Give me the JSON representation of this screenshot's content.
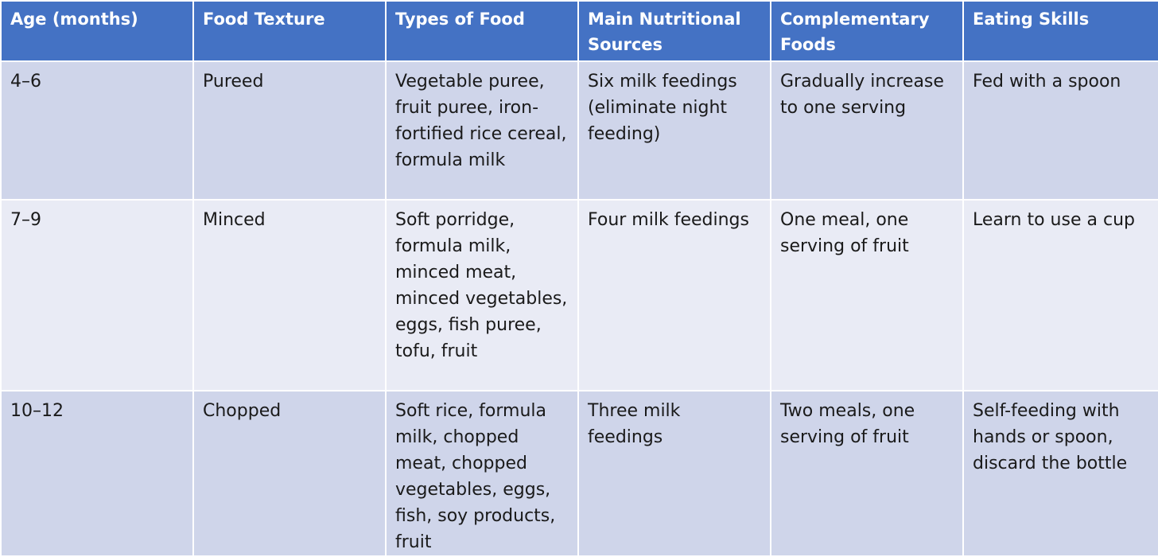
{
  "table": {
    "headers": [
      "Age (months)",
      "Food Texture",
      "Types of Food",
      "Main Nutritional Sources",
      "Complementary Foods",
      "Eating Skills"
    ],
    "rows": [
      [
        "4–6",
        "Pureed",
        "Vegetable puree, fruit puree, iron-fortified rice cereal, formula milk",
        "Six milk feedings (eliminate night feeding)",
        "Gradually increase to one serving",
        "Fed with a spoon"
      ],
      [
        "7–9",
        "Minced",
        "Soft porridge, formula milk, minced meat, minced vegetables, eggs, fish puree, tofu, fruit",
        "Four milk feedings",
        "One meal, one serving of fruit",
        "Learn to use a cup"
      ],
      [
        "10–12",
        "Chopped",
        "Soft rice, formula milk, chopped meat, chopped vegetables, eggs, fish, soy products, fruit",
        "Three milk feedings",
        "Two meals, one serving of fruit",
        "Self-feeding with hands or spoon, discard the bottle"
      ]
    ]
  }
}
